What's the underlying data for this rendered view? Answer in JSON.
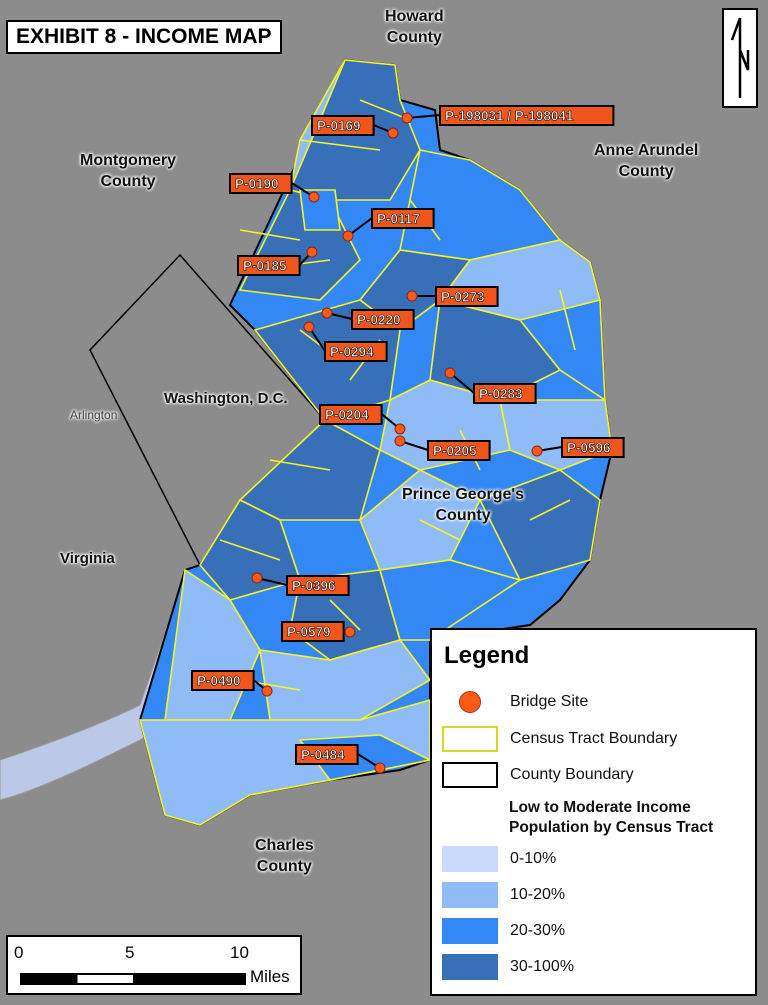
{
  "title": "EXHIBIT 8 - INCOME MAP",
  "places": {
    "howard": "Howard\nCounty",
    "montgomery": "Montgomery\nCounty",
    "anne_arundel": "Anne Arundel\nCounty",
    "washington_dc": "Washington, D.C.",
    "virginia": "Virginia",
    "prince_georges": "Prince George's\nCounty",
    "charles": "Charles\nCounty",
    "arlington": "Arlington"
  },
  "bridge_sites": [
    "P-198031 / P-198041",
    "P-0169",
    "P-0190",
    "P-0117",
    "P-0185",
    "P-0273",
    "P-0220",
    "P-0294",
    "P-0283",
    "P-0204",
    "P-0205",
    "P-0596",
    "P-0396",
    "P-0579",
    "P-0490",
    "P-0484"
  ],
  "legend": {
    "title": "Legend",
    "bridge_site": "Bridge Site",
    "census_tract": "Census Tract Boundary",
    "county_boundary": "County Boundary",
    "income_title_1": "Low to Moderate Income",
    "income_title_2": "Population by Census Tract",
    "classes": [
      {
        "label": "0-10%",
        "color": "#c9dafc"
      },
      {
        "label": "10-20%",
        "color": "#8fbcf6"
      },
      {
        "label": "20-30%",
        "color": "#3388f5"
      },
      {
        "label": "30-100%",
        "color": "#3770b8"
      }
    ]
  },
  "colors": {
    "bridge_site": "#ff5a14",
    "tract_boundary": "#f5f22a",
    "background": "#8c8c8c",
    "label_fill": "#f0561b"
  },
  "scale": {
    "ticks": [
      "0",
      "5",
      "10"
    ],
    "unit": "Miles"
  },
  "north_arrow": "N"
}
